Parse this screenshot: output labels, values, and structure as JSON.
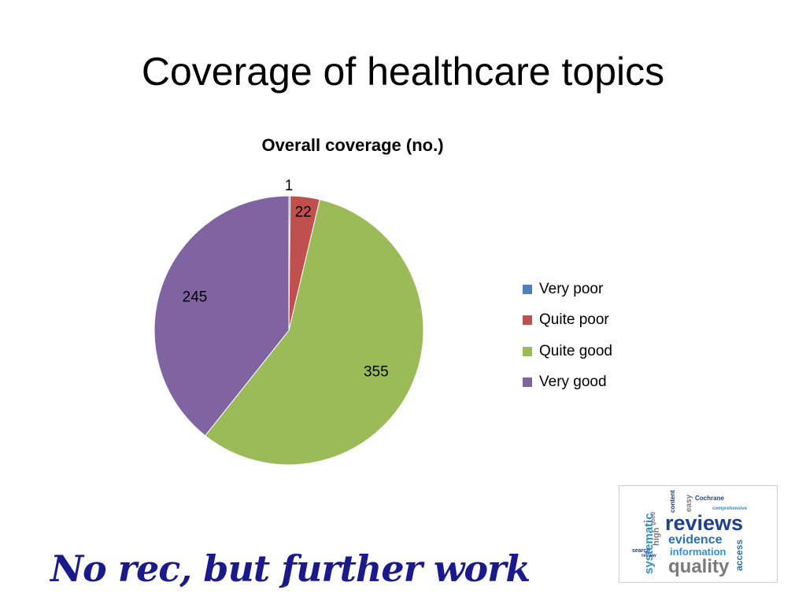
{
  "slide": {
    "title": "Coverage of healthcare topics",
    "footer_note": "No rec, but further work"
  },
  "chart_data": {
    "type": "pie",
    "title": "Overall coverage (no.)",
    "categories": [
      "Very poor",
      "Quite poor",
      "Quite good",
      "Very good"
    ],
    "values": [
      1,
      22,
      355,
      245
    ],
    "colors": [
      "#4f81bd",
      "#c0504d",
      "#9bbb59",
      "#8064a2"
    ],
    "data_labels": [
      "1",
      "22",
      "355",
      "245"
    ],
    "start_angle": "12 o'clock",
    "direction": "clockwise",
    "legend_position": "right"
  },
  "wordcloud": {
    "words": [
      {
        "text": "reviews",
        "color": "#1f3f8f"
      },
      {
        "text": "evidence",
        "color": "#2a6fb5"
      },
      {
        "text": "quality",
        "color": "#7a7a7a"
      },
      {
        "text": "information",
        "color": "#2f8fd0"
      },
      {
        "text": "systematic",
        "color": "#2f8fd0"
      },
      {
        "text": "access",
        "color": "#2a6fb5"
      },
      {
        "text": "Cochrane",
        "color": "#1f3f8f"
      },
      {
        "text": "easy",
        "color": "#7a7a7a"
      },
      {
        "text": "content",
        "color": "#1f3f8f"
      },
      {
        "text": "comprehensive",
        "color": "#2f8fd0"
      },
      {
        "text": "search",
        "color": "#1f3f8f"
      },
      {
        "text": "high",
        "color": "#7a7a7a"
      },
      {
        "text": "good",
        "color": "#7a7a7a"
      },
      {
        "text": "review",
        "color": "#1f3f8f"
      }
    ]
  }
}
